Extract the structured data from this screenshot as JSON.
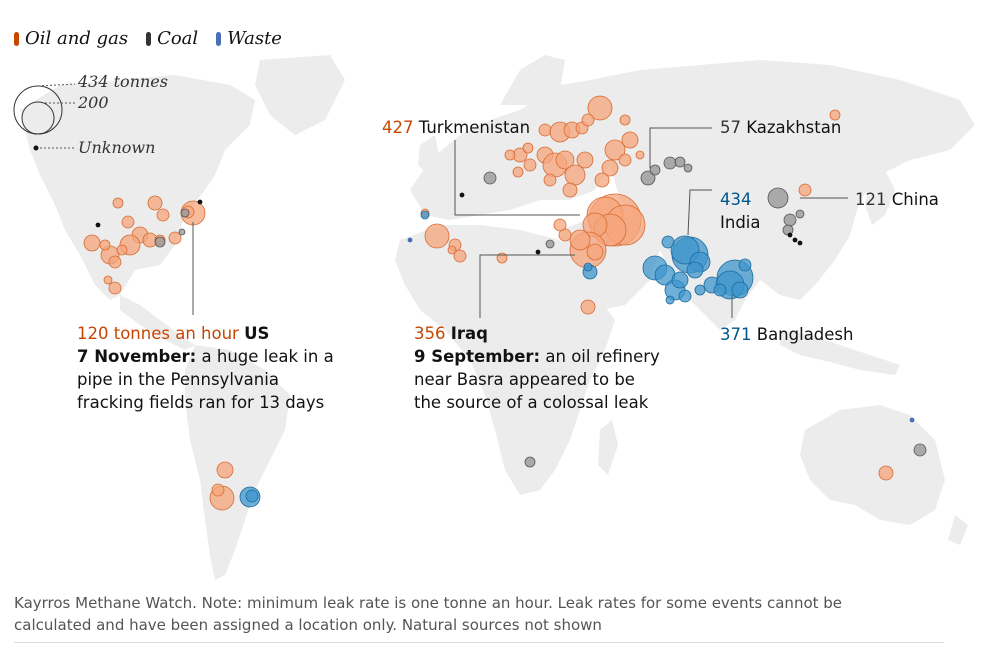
{
  "legend": {
    "items": [
      {
        "label": "Oil and gas",
        "color": "#c74600"
      },
      {
        "label": "Coal",
        "color": "#333333"
      },
      {
        "label": "Waste",
        "color": "#4a6fb4"
      }
    ]
  },
  "size_key": {
    "large": "434 tonnes",
    "medium": "200",
    "unknown": "Unknown"
  },
  "colors": {
    "land": "#ececec",
    "oil_fill": "#f5a67c",
    "oil_stroke": "#d86a30",
    "coal_fill": "#999999",
    "coal_stroke": "#555555",
    "waste_fill": "#3f95cc",
    "waste_stroke": "#1a6aa0"
  },
  "annotations": {
    "turkmenistan": {
      "value": "427",
      "country": "Turkmenistan"
    },
    "kazakhstan": {
      "value": "57",
      "country": "Kazakhstan"
    },
    "china": {
      "value": "121",
      "country": "China"
    },
    "india": {
      "value": "434",
      "country": "India"
    },
    "bangladesh": {
      "value": "371",
      "country": "Bangladesh"
    },
    "us": {
      "value": "120 tonnes an hour",
      "country": "US",
      "date": "7 November:",
      "line1": "a huge leak in a",
      "line2": "pipe in the Pennsylvania",
      "line3": "fracking fields ran for 13 days"
    },
    "iraq": {
      "value": "356",
      "country": "Iraq",
      "date": "9 September:",
      "line1": "an oil refinery",
      "line2": "near Basra appeared to be",
      "line3": "the source of a colossal leak"
    }
  },
  "footer": {
    "line1": "Kayrros Methane Watch. Note: minimum leak rate is one tonne an hour. Leak rates for some events cannot be",
    "line2": "calculated and have been assigned a location only. Natural sources not shown"
  }
}
